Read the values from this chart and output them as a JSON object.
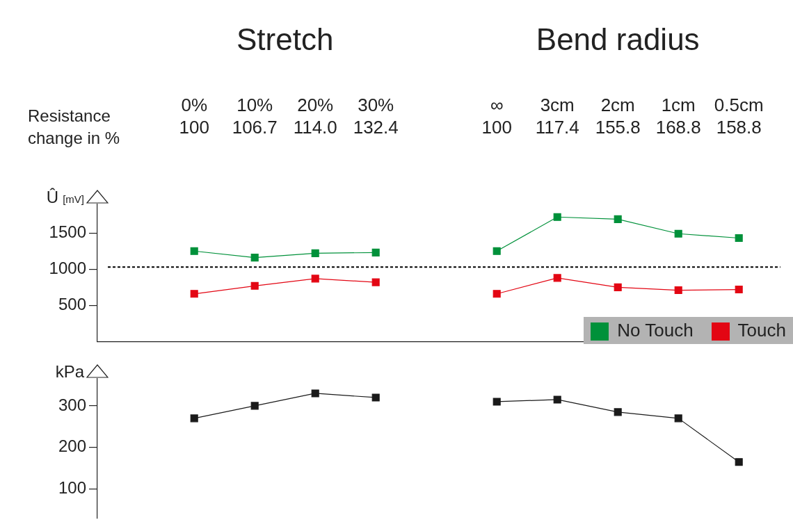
{
  "chart_data": [
    {
      "type": "line",
      "ylabel": "Û [mV]",
      "categories": [
        "0%",
        "10%",
        "20%",
        "30%",
        null,
        "∞",
        "3cm",
        "2cm",
        "1cm",
        "0.5cm"
      ],
      "series": [
        {
          "name": "No Touch",
          "color": "#00913a",
          "values": [
            1250,
            1160,
            1220,
            1230,
            null,
            1250,
            1720,
            1690,
            1490,
            1430
          ]
        },
        {
          "name": "Touch",
          "color": "#e30613",
          "values": [
            660,
            770,
            870,
            820,
            null,
            660,
            880,
            750,
            710,
            720
          ]
        }
      ],
      "ylim": [
        0,
        1900
      ],
      "yticks": [
        500,
        1000,
        1500
      ],
      "ref_lines": [
        {
          "axis": "y",
          "value": 1030,
          "line_style": "dotted",
          "color": "#000000"
        }
      ],
      "annotations": [
        "Stretch",
        "Bend radius",
        "Resistance change in %",
        "100",
        "106.7",
        "114.0",
        "132.4",
        "100",
        "117.4",
        "155.8",
        "168.8",
        "158.8"
      ],
      "marker": "square",
      "line_style": "solid",
      "grid": false,
      "legend": "bottom right"
    },
    {
      "type": "line",
      "ylabel": "kPa",
      "categories": [
        null,
        null,
        null,
        null,
        null,
        null,
        null,
        null,
        null,
        null
      ],
      "series": [
        {
          "color": "#1a1a1a",
          "values": [
            270,
            300,
            330,
            320,
            null,
            310,
            315,
            285,
            270,
            165
          ]
        }
      ],
      "ylim": [
        30,
        365
      ],
      "yticks": [
        100,
        200,
        300
      ],
      "marker": "square",
      "line_style": "solid",
      "grid": false
    }
  ]
}
